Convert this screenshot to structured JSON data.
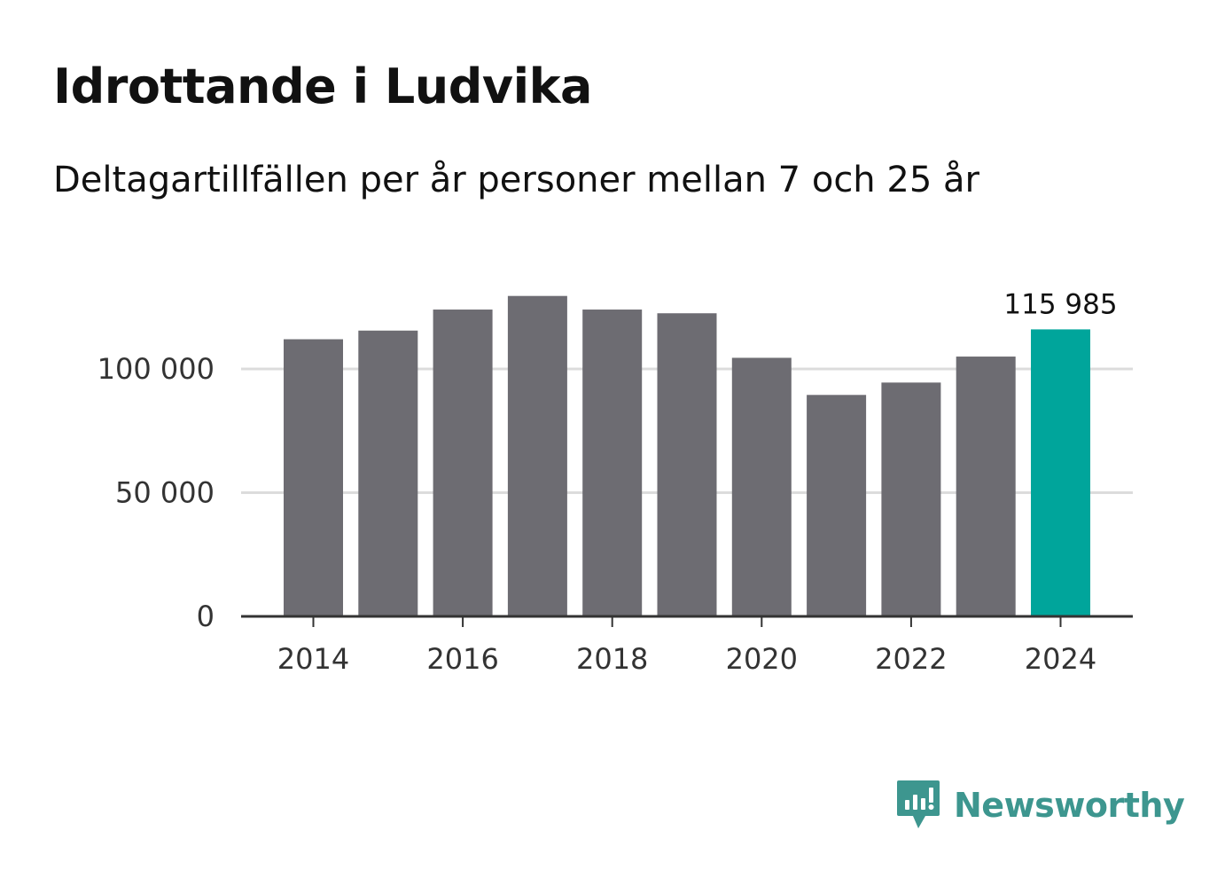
{
  "header": {
    "title": "Idrottande i Ludvika",
    "subtitle": "Deltagartillfällen per år personer mellan 7 och 25 år"
  },
  "chart_data": {
    "type": "bar",
    "title": "Idrottande i Ludvika",
    "subtitle": "Deltagartillfällen per år personer mellan 7 och 25 år",
    "categories": [
      2014,
      2015,
      2016,
      2017,
      2018,
      2019,
      2020,
      2021,
      2022,
      2023,
      2024
    ],
    "values": [
      112000,
      115500,
      124000,
      129500,
      124000,
      122500,
      104500,
      89500,
      94500,
      105000,
      115985
    ],
    "highlight_index": 10,
    "highlight_label": "115 985",
    "xlabel": "",
    "ylabel": "",
    "ylim": [
      0,
      135000
    ],
    "y_ticks": [
      {
        "value": 0,
        "label": "0"
      },
      {
        "value": 50000,
        "label": "50 000"
      },
      {
        "value": 100000,
        "label": "100 000"
      }
    ],
    "x_ticks": [
      "2014",
      "2016",
      "2018",
      "2020",
      "2022",
      "2024"
    ],
    "grid": true,
    "colors": {
      "bar": "#6d6c72",
      "highlight": "#00a59b",
      "grid": "#dcdcdc",
      "axis": "#333333"
    }
  },
  "brand": {
    "name": "Newsworthy",
    "color": "#3d968f",
    "icon": "newsworthy-logo-icon"
  }
}
